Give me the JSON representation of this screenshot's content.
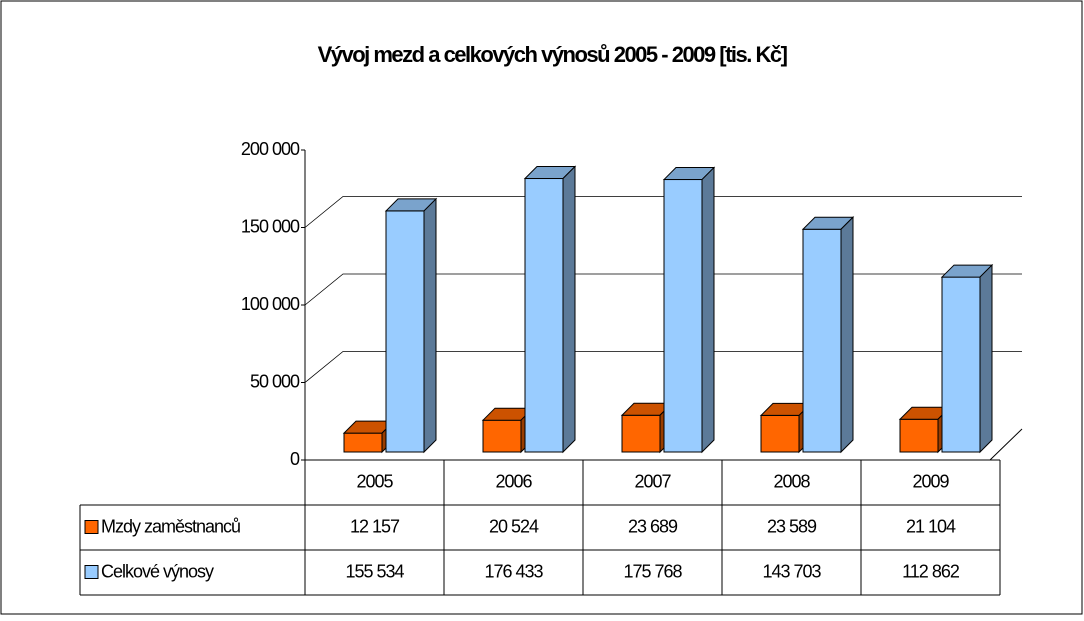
{
  "chart_data": {
    "type": "bar3d",
    "title": "Vývoj mezd a celkových výnosů 2005 - 2009 [tis. Kč]",
    "categories": [
      "2005",
      "2006",
      "2007",
      "2008",
      "2009"
    ],
    "series": [
      {
        "name": "Mzdy zaměstnanců",
        "color": "#ff6600",
        "values": [
          12157,
          20524,
          23689,
          23589,
          21104
        ],
        "value_labels": [
          "12 157",
          "20 524",
          "23 689",
          "23 589",
          "21 104"
        ]
      },
      {
        "name": "Celkové výnosy",
        "color": "#99ccff",
        "values": [
          155534,
          176433,
          175768,
          143703,
          112862
        ],
        "value_labels": [
          "155 534",
          "176 433",
          "175 768",
          "143 703",
          "112 862"
        ]
      }
    ],
    "ylim": [
      0,
      200000
    ],
    "yticks": [
      0,
      {
        "value": 50000,
        "label": "50 000"
      },
      {
        "value": 100000,
        "label": "100 000"
      },
      {
        "value": 150000,
        "label": "150 000"
      },
      {
        "value": 200000,
        "label": "200 000"
      }
    ],
    "grid": true
  }
}
